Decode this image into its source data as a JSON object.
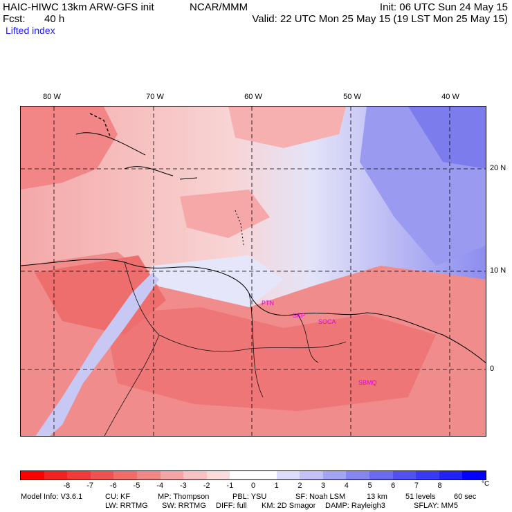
{
  "header": {
    "model": "HAIC-HIWC 13km ARW-GFS init",
    "org": "NCAR/MMM",
    "init": "Init: 06 UTC Sun 24 May 15",
    "fcst_label": "Fcst:",
    "fcst_value": "40 h",
    "valid": "Valid: 22 UTC Mon 25 May 15 (19 LST Mon 25 May 15)",
    "field": "Lifted index"
  },
  "map": {
    "longitude_labels": [
      "80 W",
      "70 W",
      "60 W",
      "50 W",
      "40 W"
    ],
    "latitude_labels": [
      "20 N",
      "10 N",
      "0"
    ],
    "stations": [
      "PTN",
      "SKP",
      "SOCA",
      "SBMQ"
    ]
  },
  "colorbar": {
    "colors": [
      "#ff0000",
      "#f22222",
      "#f23a3a",
      "#f05252",
      "#f26a6a",
      "#f28686",
      "#f4a4a4",
      "#f8c2c2",
      "#fbdcdc",
      "#ffffff",
      "#ffffff",
      "#dcdcfb",
      "#c2c2f8",
      "#a4a4f4",
      "#8686f2",
      "#6a6af2",
      "#5252f0",
      "#3a3af2",
      "#2222f2",
      "#0000ff"
    ],
    "tick_labels": [
      "-8",
      "-7",
      "-6",
      "-5",
      "-4",
      "-3",
      "-2",
      "-1",
      "0",
      "1",
      "2",
      "3",
      "4",
      "5",
      "6",
      "7",
      "8"
    ],
    "unit": "°C"
  },
  "footer": {
    "line1": [
      "Model Info: V3.6.1",
      "CU: KF",
      "MP: Thompson",
      "PBL: YSU",
      "SF: Noah LSM",
      "13 km",
      "51 levels",
      "60 sec"
    ],
    "line2": [
      "LW: RRTMG",
      "SW: RRTMG",
      "DIFF: full",
      "KM: 2D Smagor",
      "DAMP: Rayleigh3",
      "SFLAY: MM5"
    ]
  }
}
